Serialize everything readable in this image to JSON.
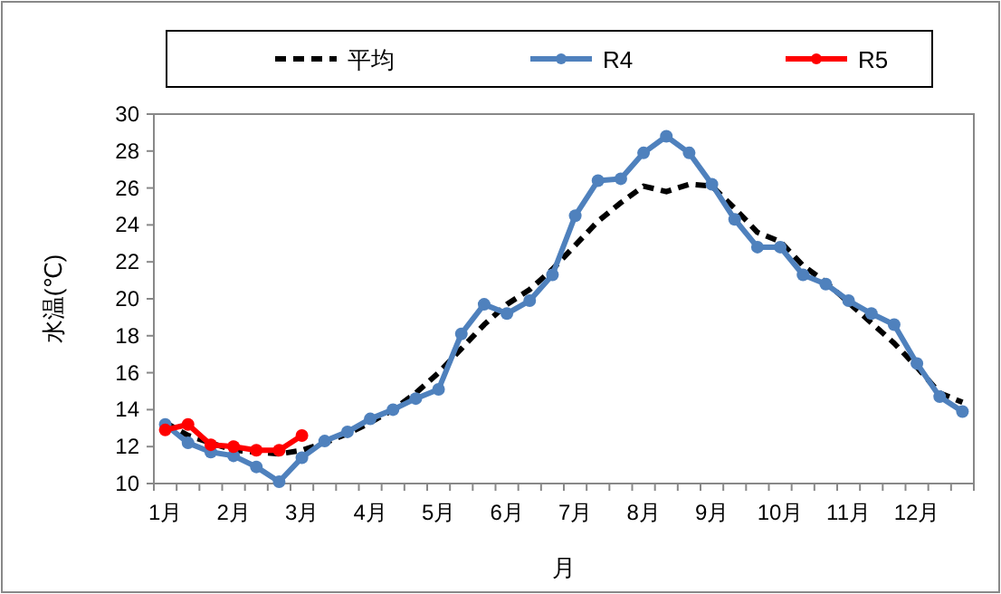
{
  "chart_data": {
    "type": "line",
    "xlabel": "月",
    "ylabel": "水温(℃)",
    "legend": "top",
    "grid": false,
    "ylim": [
      10,
      30
    ],
    "yticks": [
      10,
      12,
      14,
      16,
      18,
      20,
      22,
      24,
      26,
      28,
      30
    ],
    "categories": [
      "1月",
      null,
      null,
      "2月",
      null,
      null,
      "3月",
      null,
      null,
      "4月",
      null,
      null,
      "5月",
      null,
      null,
      "6月",
      null,
      null,
      "7月",
      null,
      null,
      "8月",
      null,
      null,
      "9月",
      null,
      null,
      "10月",
      null,
      null,
      "11月",
      null,
      null,
      "12月",
      null,
      null
    ],
    "series": [
      {
        "name": "平均",
        "color": "#000000",
        "line_style": "dashed",
        "marker": "none",
        "values": [
          13.3,
          12.6,
          12.2,
          11.8,
          11.7,
          11.6,
          11.8,
          12.2,
          12.7,
          13.3,
          14.0,
          14.9,
          16.0,
          17.3,
          18.6,
          19.7,
          20.5,
          21.6,
          22.9,
          24.2,
          25.2,
          26.1,
          25.8,
          26.2,
          26.1,
          24.9,
          23.6,
          23.1,
          21.8,
          20.9,
          19.8,
          18.7,
          17.6,
          16.3,
          14.9,
          14.4
        ]
      },
      {
        "name": "R4",
        "color": "#4f81bd",
        "line_style": "solid",
        "marker": "circle",
        "values": [
          13.2,
          12.2,
          11.7,
          11.5,
          10.9,
          10.1,
          11.4,
          12.3,
          12.8,
          13.5,
          14.0,
          14.6,
          15.1,
          18.1,
          19.7,
          19.2,
          19.9,
          21.3,
          24.5,
          26.4,
          26.5,
          27.9,
          28.8,
          27.9,
          26.2,
          24.3,
          22.8,
          22.8,
          21.3,
          20.8,
          19.9,
          19.2,
          18.6,
          16.5,
          14.7,
          13.9
        ]
      },
      {
        "name": "R5",
        "color": "#ff0000",
        "line_style": "solid",
        "marker": "circle",
        "values": [
          12.9,
          13.2,
          12.1,
          12.0,
          11.8,
          11.8,
          12.6,
          null,
          null,
          null,
          null,
          null,
          null,
          null,
          null,
          null,
          null,
          null,
          null,
          null,
          null,
          null,
          null,
          null,
          null,
          null,
          null,
          null,
          null,
          null,
          null,
          null,
          null,
          null,
          null,
          null
        ]
      }
    ]
  }
}
